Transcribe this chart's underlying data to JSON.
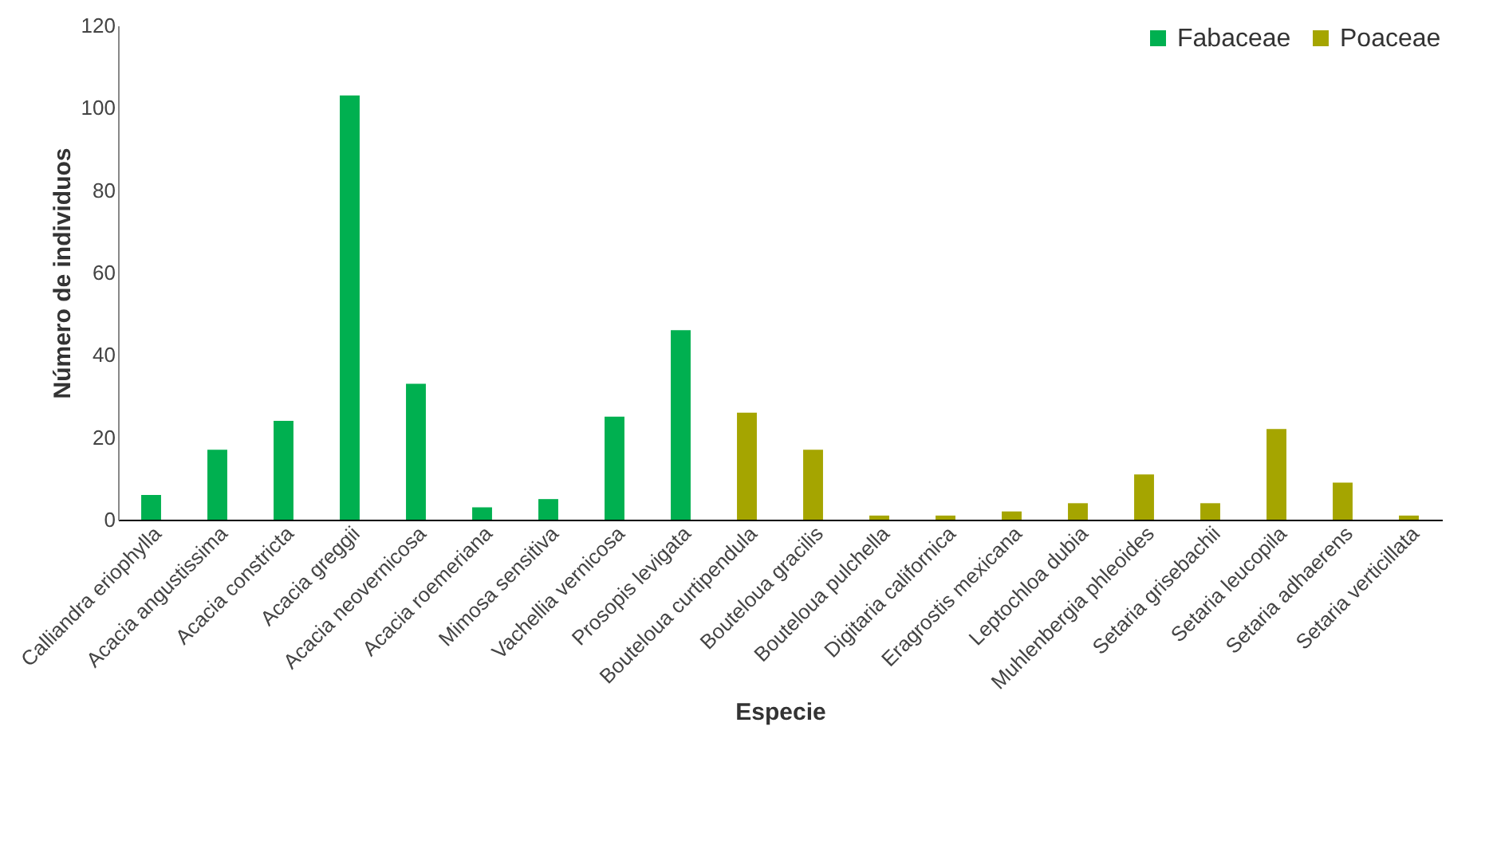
{
  "chart_data": {
    "type": "bar",
    "xlabel": "Especie",
    "ylabel": "Número de individuos",
    "categories": [
      "Calliandra eriophylla",
      "Acacia angustissima",
      "Acacia constricta",
      "Acacia greggii",
      "Acacia neovernicosa",
      "Acacia roemeriana",
      "Mimosa sensitiva",
      "Vachellia vernicosa",
      "Prosopis levigata",
      "Bouteloua curtipendula",
      "Bouteloua gracilis",
      "Bouteloua pulchella",
      "Digitaria californica",
      "Eragrostis mexicana",
      "Leptochloa dubia",
      "Muhlenbergia phleoides",
      "Setaria grisebachii",
      "Setaria leucopila",
      "Setaria adhaerens",
      "Setaria verticillata"
    ],
    "series": [
      {
        "name": "Fabaceae",
        "color": "#00b050",
        "values": [
          6,
          17,
          24,
          103,
          33,
          3,
          5,
          25,
          46,
          null,
          null,
          null,
          null,
          null,
          null,
          null,
          null,
          null,
          null,
          null
        ]
      },
      {
        "name": "Poaceae",
        "color": "#a5a500",
        "values": [
          null,
          null,
          null,
          null,
          null,
          null,
          null,
          null,
          null,
          26,
          17,
          1,
          1,
          2,
          4,
          11,
          4,
          22,
          9,
          1
        ]
      }
    ],
    "ylim": [
      0,
      120
    ],
    "yticks": [
      0,
      20,
      40,
      60,
      80,
      100,
      120
    ],
    "grid": false,
    "legend": "top right"
  }
}
